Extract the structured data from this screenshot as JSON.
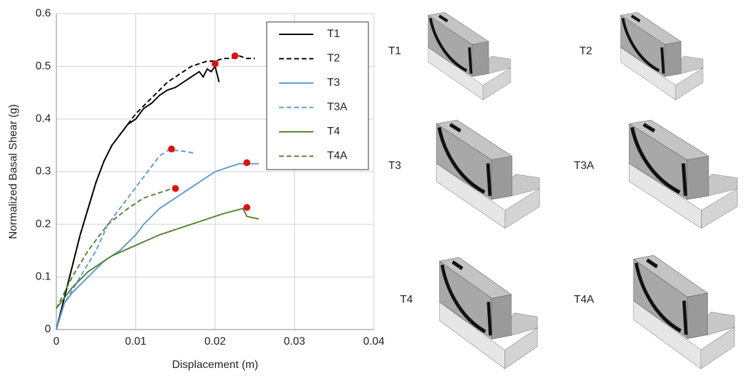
{
  "chart_data": {
    "type": "line",
    "x_label": "Displacement (m)",
    "y_label": "Normalized Basal Shear (g)",
    "xlim": [
      0,
      0.04
    ],
    "xticks": [
      0,
      0.01,
      0.02,
      0.03,
      0.04
    ],
    "ylim": [
      0,
      0.6
    ],
    "yticks": [
      0,
      0.1,
      0.2,
      0.3,
      0.4,
      0.5,
      0.6
    ],
    "grid": true,
    "legend": "top-right",
    "peak_color": "#e01010",
    "series": [
      {
        "name": "T1",
        "color": "#000000",
        "dash": false,
        "x": [
          0,
          0.001,
          0.002,
          0.003,
          0.004,
          0.005,
          0.006,
          0.007,
          0.008,
          0.009,
          0.01,
          0.011,
          0.012,
          0.013,
          0.014,
          0.015,
          0.016,
          0.017,
          0.018,
          0.0185,
          0.019,
          0.0195,
          0.02,
          0.0205
        ],
        "values": [
          0,
          0.06,
          0.12,
          0.18,
          0.23,
          0.28,
          0.32,
          0.35,
          0.37,
          0.39,
          0.4,
          0.42,
          0.43,
          0.445,
          0.455,
          0.46,
          0.47,
          0.48,
          0.49,
          0.48,
          0.495,
          0.49,
          0.5,
          0.47
        ],
        "peak_x": 0.02,
        "peak_y": 0.505
      },
      {
        "name": "T2",
        "color": "#000000",
        "dash": true,
        "x": [
          0,
          0.001,
          0.002,
          0.003,
          0.004,
          0.005,
          0.006,
          0.007,
          0.008,
          0.009,
          0.01,
          0.011,
          0.012,
          0.013,
          0.014,
          0.015,
          0.016,
          0.017,
          0.018,
          0.019,
          0.02,
          0.021,
          0.022,
          0.023,
          0.024,
          0.025
        ],
        "values": [
          0,
          0.06,
          0.12,
          0.18,
          0.23,
          0.28,
          0.32,
          0.35,
          0.37,
          0.39,
          0.41,
          0.425,
          0.44,
          0.455,
          0.47,
          0.48,
          0.49,
          0.5,
          0.505,
          0.51,
          0.51,
          0.515,
          0.515,
          0.52,
          0.515,
          0.515
        ],
        "peak_x": 0.0225,
        "peak_y": 0.52
      },
      {
        "name": "T3",
        "color": "#5b9bd5",
        "dash": false,
        "x": [
          0,
          0.001,
          0.002,
          0.004,
          0.006,
          0.008,
          0.01,
          0.011,
          0.013,
          0.015,
          0.017,
          0.018,
          0.02,
          0.022,
          0.023,
          0.024,
          0.0255
        ],
        "values": [
          0,
          0.05,
          0.07,
          0.1,
          0.13,
          0.15,
          0.18,
          0.2,
          0.23,
          0.25,
          0.27,
          0.28,
          0.3,
          0.31,
          0.315,
          0.315,
          0.315
        ],
        "peak_x": 0.024,
        "peak_y": 0.317
      },
      {
        "name": "T3A",
        "color": "#5b9bd5",
        "dash": true,
        "x": [
          0,
          0.001,
          0.003,
          0.005,
          0.0065,
          0.009,
          0.0115,
          0.013,
          0.014,
          0.0155,
          0.0175
        ],
        "values": [
          0,
          0.05,
          0.1,
          0.15,
          0.2,
          0.25,
          0.3,
          0.33,
          0.34,
          0.34,
          0.335
        ],
        "peak_x": 0.0145,
        "peak_y": 0.343
      },
      {
        "name": "T4",
        "color": "#548235",
        "dash": false,
        "x": [
          0,
          0.002,
          0.004,
          0.007,
          0.01,
          0.013,
          0.017,
          0.021,
          0.0235,
          0.024,
          0.0255
        ],
        "values": [
          0.04,
          0.08,
          0.11,
          0.14,
          0.16,
          0.18,
          0.2,
          0.22,
          0.23,
          0.215,
          0.21
        ],
        "peak_x": 0.024,
        "peak_y": 0.232
      },
      {
        "name": "T4A",
        "color": "#548235",
        "dash": true,
        "x": [
          0,
          0.002,
          0.004,
          0.0065,
          0.009,
          0.011,
          0.013,
          0.015
        ],
        "values": [
          0.04,
          0.1,
          0.15,
          0.2,
          0.23,
          0.25,
          0.26,
          0.27
        ],
        "peak_x": 0.015,
        "peak_y": 0.268
      }
    ]
  },
  "panels": [
    "T1",
    "T2",
    "T3",
    "T3A",
    "T4",
    "T4A"
  ]
}
